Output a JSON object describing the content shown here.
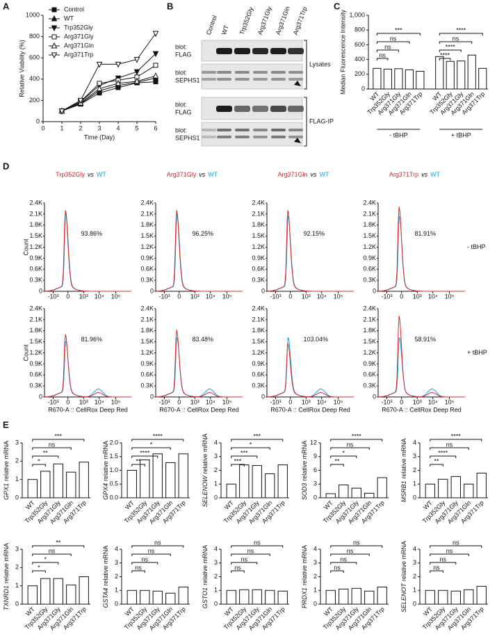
{
  "panel_labels": [
    "A",
    "B",
    "C",
    "D",
    "E"
  ],
  "chart_data": [
    {
      "type": "line",
      "x_label": "Time (Day)",
      "y_label": "Relative Viability (%)",
      "x": [
        1,
        2,
        3,
        4,
        5,
        6
      ],
      "xlim": [
        0,
        6
      ],
      "xticks": [
        0,
        1,
        2,
        3,
        4,
        5,
        6
      ],
      "ylim": [
        0,
        1000
      ],
      "yticks": [
        0,
        200,
        400,
        600,
        800,
        1000
      ],
      "series": [
        {
          "name": "Control",
          "color": "#111111",
          "marker": "square",
          "filled": true,
          "values": [
            100,
            165,
            270,
            320,
            365,
            375
          ]
        },
        {
          "name": "WT",
          "color": "#111111",
          "marker": "triangle-up",
          "filled": true,
          "values": [
            100,
            170,
            290,
            340,
            370,
            410
          ]
        },
        {
          "name": "Trp352Gly",
          "color": "#111111",
          "marker": "triangle-down",
          "filled": true,
          "values": [
            100,
            185,
            340,
            410,
            470,
            640
          ]
        },
        {
          "name": "Arg371Gly",
          "color": "#111111",
          "marker": "square",
          "filled": false,
          "values": [
            100,
            190,
            360,
            390,
            420,
            530
          ]
        },
        {
          "name": "Arg371Gln",
          "color": "#111111",
          "marker": "triangle-up",
          "filled": false,
          "values": [
            100,
            175,
            310,
            360,
            380,
            430
          ]
        },
        {
          "name": "Arg371Trp",
          "color": "#111111",
          "marker": "triangle-down",
          "filled": false,
          "values": [
            100,
            200,
            540,
            540,
            585,
            830
          ]
        }
      ]
    },
    {
      "type": "bar",
      "y_label": "Median Fluorescence Intensity",
      "color": "#ffffff",
      "categories": [
        "WT",
        "Trp352Gly",
        "Arg371Gly",
        "Arg371Gln",
        "Arg371Trp",
        "WT",
        "Trp352Gly",
        "Arg371Gly",
        "Arg371Gln",
        "Arg371Trp"
      ],
      "groups": [
        "- tBHP",
        "+ tBHP"
      ],
      "values": [
        280,
        270,
        275,
        260,
        240,
        440,
        375,
        380,
        460,
        280
      ],
      "ylim": [
        0,
        1000
      ],
      "yticks": [
        0,
        200,
        400,
        600,
        800,
        {
          "value": 1000,
          "label": "1,000"
        }
      ],
      "brackets": [
        {
          "from": 0,
          "to": 1,
          "label": "ns"
        },
        {
          "from": 0,
          "to": 2,
          "label": "ns"
        },
        {
          "from": 0,
          "to": 3,
          "label": "ns"
        },
        {
          "from": 0,
          "to": 4,
          "label": "***"
        },
        {
          "from": 5,
          "to": 6,
          "label": "****"
        },
        {
          "from": 5,
          "to": 7,
          "label": "****"
        },
        {
          "from": 5,
          "to": 8,
          "label": "ns"
        },
        {
          "from": 5,
          "to": 9,
          "label": "****"
        }
      ]
    },
    {
      "type": "bar",
      "gene": "GPX1",
      "y_label": "relative mRNA",
      "color": "#ffffff",
      "categories": [
        "WT",
        "Trp352Gly",
        "Arg371Gly",
        "Arg371Gln",
        "Arg371Trp"
      ],
      "values": [
        1.0,
        1.45,
        1.85,
        1.4,
        1.95
      ],
      "ylim": [
        0,
        3
      ],
      "yticks": [
        0,
        1,
        2,
        3
      ],
      "brackets": [
        {
          "from": 0,
          "to": 1,
          "label": "*"
        },
        {
          "from": 0,
          "to": 2,
          "label": "**"
        },
        {
          "from": 0,
          "to": 3,
          "label": "ns"
        },
        {
          "from": 0,
          "to": 4,
          "label": "***"
        }
      ]
    },
    {
      "type": "bar",
      "gene": "GPX4",
      "y_label": "relative mRNA",
      "color": "#ffffff",
      "categories": [
        "WT",
        "Trp352Gly",
        "Arg371Gly",
        "Arg371Gln",
        "Arg371Trp"
      ],
      "values": [
        1.0,
        1.38,
        1.6,
        1.28,
        1.6
      ],
      "ylim": [
        0,
        2
      ],
      "yticks": [
        {
          "value": 0,
          "label": "0.0"
        },
        {
          "value": 0.5,
          "label": "0.5"
        },
        {
          "value": 1,
          "label": "1.0"
        },
        {
          "value": 1.5,
          "label": "1.5"
        },
        {
          "value": 2,
          "label": "2.0"
        }
      ],
      "brackets": [
        {
          "from": 0,
          "to": 1,
          "label": "**"
        },
        {
          "from": 0,
          "to": 2,
          "label": "****"
        },
        {
          "from": 0,
          "to": 3,
          "label": "*"
        },
        {
          "from": 0,
          "to": 4,
          "label": "****"
        }
      ]
    },
    {
      "type": "bar",
      "gene": "SELENOW",
      "y_label": "relative mRNA",
      "color": "#ffffff",
      "categories": [
        "WT",
        "Trp352Gly",
        "Arg371Gly",
        "Arg371Gln",
        "Arg371Trp"
      ],
      "values": [
        1.0,
        2.4,
        2.35,
        1.75,
        2.4
      ],
      "ylim": [
        0,
        4
      ],
      "yticks": [
        0,
        1,
        2,
        3,
        4
      ],
      "brackets": [
        {
          "from": 0,
          "to": 1,
          "label": "***"
        },
        {
          "from": 0,
          "to": 2,
          "label": "***"
        },
        {
          "from": 0,
          "to": 3,
          "label": "*"
        },
        {
          "from": 0,
          "to": 4,
          "label": "***"
        }
      ]
    },
    {
      "type": "bar",
      "gene": "SOD3",
      "y_label": "relative mRNA",
      "color": "#ffffff",
      "categories": [
        "WT",
        "Trp352Gly",
        "Arg371Gly",
        "Arg371Gln",
        "Arg371Trp"
      ],
      "values": [
        0.9,
        2.8,
        2.1,
        1.0,
        4.4
      ],
      "ylim": [
        0,
        12
      ],
      "yticks": [
        0,
        3,
        6,
        9,
        12
      ],
      "brackets": [
        {
          "from": 0,
          "to": 1,
          "label": "**"
        },
        {
          "from": 0,
          "to": 2,
          "label": "*"
        },
        {
          "from": 0,
          "to": 3,
          "label": "ns"
        },
        {
          "from": 0,
          "to": 4,
          "label": "****"
        }
      ]
    },
    {
      "type": "bar",
      "gene": "MSRB1",
      "y_label": "relative mRNA",
      "color": "#ffffff",
      "categories": [
        "WT",
        "Trp352Gly",
        "Arg371Gly",
        "Arg371Gln",
        "Arg371Trp"
      ],
      "values": [
        1.0,
        1.35,
        1.55,
        1.0,
        1.8
      ],
      "ylim": [
        0,
        4
      ],
      "yticks": [
        0,
        1,
        2,
        3,
        4
      ],
      "brackets": [
        {
          "from": 0,
          "to": 1,
          "label": "**"
        },
        {
          "from": 0,
          "to": 2,
          "label": "****"
        },
        {
          "from": 0,
          "to": 3,
          "label": "ns"
        },
        {
          "from": 0,
          "to": 4,
          "label": "****"
        }
      ]
    },
    {
      "type": "bar",
      "gene": "TXNRD1",
      "y_label": "relative mRNA",
      "color": "#ffffff",
      "categories": [
        "WT",
        "Trp352Gly",
        "Arg371Gly",
        "Arg371Gln",
        "Arg371Trp"
      ],
      "values": [
        1.0,
        1.4,
        1.4,
        1.05,
        1.5
      ],
      "ylim": [
        0,
        3
      ],
      "yticks": [
        0,
        1,
        2,
        3
      ],
      "brackets": [
        {
          "from": 0,
          "to": 1,
          "label": "*"
        },
        {
          "from": 0,
          "to": 2,
          "label": "*"
        },
        {
          "from": 0,
          "to": 3,
          "label": "ns"
        },
        {
          "from": 0,
          "to": 4,
          "label": "**"
        }
      ]
    },
    {
      "type": "bar",
      "gene": "GSTA4",
      "y_label": "relative mRNA",
      "color": "#ffffff",
      "categories": [
        "WT",
        "Trp352Gly",
        "Arg371Gly",
        "Arg371Gln",
        "Arg371Trp"
      ],
      "values": [
        1.0,
        1.0,
        0.95,
        0.8,
        1.25
      ],
      "ylim": [
        0,
        4
      ],
      "yticks": [
        0,
        1,
        2,
        3,
        4
      ],
      "brackets": [
        {
          "from": 0,
          "to": 1,
          "label": "ns"
        },
        {
          "from": 0,
          "to": 2,
          "label": "ns"
        },
        {
          "from": 0,
          "to": 3,
          "label": "ns"
        },
        {
          "from": 0,
          "to": 4,
          "label": "ns"
        }
      ]
    },
    {
      "type": "bar",
      "gene": "GSTO1",
      "y_label": "relative mRNA",
      "color": "#ffffff",
      "categories": [
        "WT",
        "Trp352Gly",
        "Arg371Gly",
        "Arg371Gln",
        "Arg371Trp"
      ],
      "values": [
        1.0,
        1.05,
        1.05,
        1.0,
        0.95
      ],
      "ylim": [
        0,
        4
      ],
      "yticks": [
        0,
        1,
        2,
        3,
        4
      ],
      "brackets": [
        {
          "from": 0,
          "to": 1,
          "label": "ns"
        },
        {
          "from": 0,
          "to": 2,
          "label": "ns"
        },
        {
          "from": 0,
          "to": 3,
          "label": "ns"
        },
        {
          "from": 0,
          "to": 4,
          "label": "ns"
        }
      ]
    },
    {
      "type": "bar",
      "gene": "PRDX1",
      "y_label": "relative mRNA",
      "color": "#ffffff",
      "categories": [
        "WT",
        "Trp352Gly",
        "Arg371Gly",
        "Arg371Gln",
        "Arg371Trp"
      ],
      "values": [
        1.0,
        1.1,
        1.15,
        0.95,
        1.25
      ],
      "ylim": [
        0,
        4
      ],
      "yticks": [
        0,
        1,
        2,
        3,
        4
      ],
      "brackets": [
        {
          "from": 0,
          "to": 1,
          "label": "ns"
        },
        {
          "from": 0,
          "to": 2,
          "label": "ns"
        },
        {
          "from": 0,
          "to": 3,
          "label": "ns"
        },
        {
          "from": 0,
          "to": 4,
          "label": "ns"
        }
      ]
    },
    {
      "type": "bar",
      "gene": "SELENOT",
      "y_label": "relative mRNA",
      "color": "#ffffff",
      "categories": [
        "WT",
        "Trp352Gly",
        "Arg371Gly",
        "Arg371Gln",
        "Arg371Trp"
      ],
      "values": [
        1.0,
        1.0,
        0.95,
        1.05,
        1.3
      ],
      "ylim": [
        0,
        4
      ],
      "yticks": [
        0,
        1,
        2,
        3,
        4
      ],
      "brackets": [
        {
          "from": 0,
          "to": 1,
          "label": "ns"
        },
        {
          "from": 0,
          "to": 2,
          "label": "ns"
        },
        {
          "from": 0,
          "to": 3,
          "label": "ns"
        },
        {
          "from": 0,
          "to": 4,
          "label": "ns"
        }
      ]
    }
  ],
  "blot": {
    "lanes": [
      "Control",
      "WT",
      "Trp352Gly",
      "Arg371Gly",
      "Arg371Gln",
      "Arg371Trp"
    ],
    "rows": [
      {
        "title": "blot:",
        "target": "FLAG"
      },
      {
        "title": "blot:",
        "target": "SEPHS1"
      },
      {
        "title": "blot:",
        "target": "FLAG"
      },
      {
        "title": "blot:",
        "target": "SEPHS1"
      }
    ],
    "groups": [
      "Lysates",
      "FLAG-IP"
    ]
  },
  "flow": {
    "y_label": "Count",
    "x_label": "R670-A :: CellRox Deep Red",
    "yticks": [
      "0",
      "0.3K",
      "0.6K",
      "0.9K",
      "1.2K",
      "1.5K",
      "1.8K",
      "2.1K",
      "2.4K"
    ],
    "xticks": [
      "-10³",
      "0",
      "10³",
      "10⁴",
      "10⁵"
    ],
    "rows": [
      "- tBHP",
      "+ tBHP"
    ],
    "columns": [
      {
        "mutant": "Trp352Gly",
        "vs": "vs",
        "wt": "WT"
      },
      {
        "mutant": "Arg371Gly",
        "vs": "vs",
        "wt": "WT"
      },
      {
        "mutant": "Arg371Gln",
        "vs": "vs",
        "wt": "WT"
      },
      {
        "mutant": "Arg371Trp",
        "vs": "vs",
        "wt": "WT"
      }
    ],
    "percentages": [
      [
        "93.86%",
        "96.25%",
        "92.15%",
        "81.91%"
      ],
      [
        "81.96%",
        "83.48%",
        "103.04%",
        "58.91%"
      ]
    ]
  }
}
